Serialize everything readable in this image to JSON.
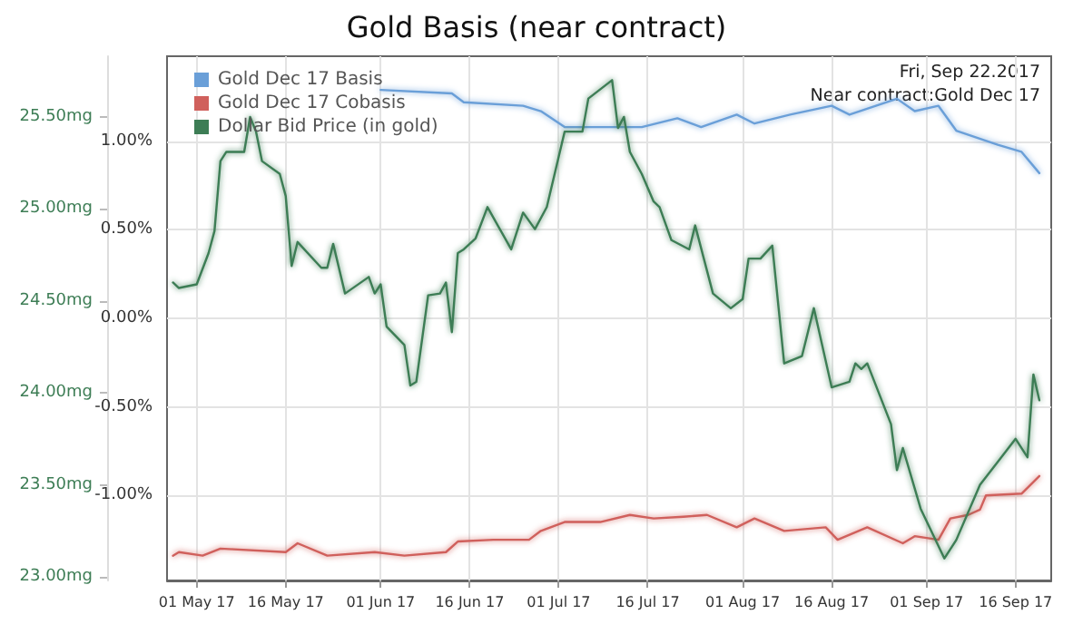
{
  "chart_data": {
    "type": "line",
    "title": "Gold Basis (near contract)",
    "annotations": [
      "Fri, Sep 22.2017",
      "Near contract:Gold Dec 17"
    ],
    "xlim": [
      "2017-04-26",
      "2017-09-22"
    ],
    "xticks": [
      {
        "value": "2017-05-01",
        "label": "01 May 17"
      },
      {
        "value": "2017-05-16",
        "label": "16 May 17"
      },
      {
        "value": "2017-06-01",
        "label": "01 Jun 17"
      },
      {
        "value": "2017-06-16",
        "label": "16 Jun 17"
      },
      {
        "value": "2017-07-01",
        "label": "01 Jul 17"
      },
      {
        "value": "2017-07-16",
        "label": "16 Jul 17"
      },
      {
        "value": "2017-08-01",
        "label": "01 Aug 17"
      },
      {
        "value": "2017-08-16",
        "label": "16 Aug 17"
      },
      {
        "value": "2017-09-01",
        "label": "01 Sep 17"
      },
      {
        "value": "2017-09-16",
        "label": "16 Sep 17"
      }
    ],
    "ylim": [
      -1.48,
      1.48
    ],
    "yticks": [
      {
        "value": -1,
        "label": "-1.00%"
      },
      {
        "value": -0.5,
        "label": "-0.50%"
      },
      {
        "value": 0,
        "label": "0.00%"
      },
      {
        "value": 0.5,
        "label": "0.50%"
      },
      {
        "value": 1,
        "label": "1.00%"
      }
    ],
    "y2lim": [
      22.98,
      25.83
    ],
    "y2ticks": [
      {
        "value": 23,
        "label": "23.00mg"
      },
      {
        "value": 23.5,
        "label": "23.50mg"
      },
      {
        "value": 24,
        "label": "24.00mg"
      },
      {
        "value": 24.5,
        "label": "24.50mg"
      },
      {
        "value": 25,
        "label": "25.00mg"
      },
      {
        "value": 25.5,
        "label": "25.50mg"
      }
    ],
    "grid": true,
    "legend": "top left",
    "marker": "none",
    "line_style": "solid",
    "series": [
      {
        "name": "Gold Dec 17 Basis",
        "color": "#6a9fd8",
        "x": [
          "2017-06-01",
          "2017-06-13",
          "2017-06-15",
          "2017-06-25",
          "2017-06-28",
          "2017-07-02",
          "2017-07-15",
          "2017-07-21",
          "2017-07-25",
          "2017-07-31",
          "2017-08-03",
          "2017-08-09",
          "2017-08-16",
          "2017-08-19",
          "2017-08-27",
          "2017-08-30",
          "2017-09-03",
          "2017-09-06",
          "2017-09-13",
          "2017-09-17",
          "2017-09-20"
        ],
        "values": [
          1.29,
          1.27,
          1.22,
          1.2,
          1.17,
          1.08,
          1.08,
          1.13,
          1.08,
          1.15,
          1.1,
          1.15,
          1.2,
          1.15,
          1.24,
          1.17,
          1.2,
          1.06,
          0.98,
          0.94,
          0.82
        ]
      },
      {
        "name": "Gold Dec 17 Cobasis",
        "color": "#d0605c",
        "x": [
          "2017-04-27",
          "2017-04-28",
          "2017-05-02",
          "2017-05-05",
          "2017-05-16",
          "2017-05-18",
          "2017-05-23",
          "2017-05-31",
          "2017-06-05",
          "2017-06-12",
          "2017-06-14",
          "2017-06-20",
          "2017-06-26",
          "2017-06-28",
          "2017-07-02",
          "2017-07-08",
          "2017-07-13",
          "2017-07-17",
          "2017-07-22",
          "2017-07-26",
          "2017-07-31",
          "2017-08-03",
          "2017-08-08",
          "2017-08-15",
          "2017-08-17",
          "2017-08-22",
          "2017-08-28",
          "2017-08-30",
          "2017-09-03",
          "2017-09-05",
          "2017-09-08",
          "2017-09-10",
          "2017-09-11",
          "2017-09-17",
          "2017-09-20"
        ],
        "values": [
          -1.34,
          -1.32,
          -1.34,
          -1.3,
          -1.32,
          -1.27,
          -1.34,
          -1.32,
          -1.34,
          -1.32,
          -1.26,
          -1.25,
          -1.25,
          -1.2,
          -1.15,
          -1.15,
          -1.11,
          -1.13,
          -1.12,
          -1.11,
          -1.18,
          -1.13,
          -1.2,
          -1.18,
          -1.25,
          -1.18,
          -1.27,
          -1.23,
          -1.25,
          -1.13,
          -1.11,
          -1.08,
          -1.0,
          -0.99,
          -0.89
        ]
      },
      {
        "name": "Dollar Bid Price (in gold)",
        "color": "#3d7d55",
        "axis": "y2",
        "x": [
          "2017-04-27",
          "2017-04-28",
          "2017-05-01",
          "2017-05-03",
          "2017-05-04",
          "2017-05-05",
          "2017-05-06",
          "2017-05-09",
          "2017-05-10",
          "2017-05-11",
          "2017-05-12",
          "2017-05-15",
          "2017-05-16",
          "2017-05-17",
          "2017-05-18",
          "2017-05-22",
          "2017-05-23",
          "2017-05-24",
          "2017-05-26",
          "2017-05-30",
          "2017-05-31",
          "2017-06-01",
          "2017-06-02",
          "2017-06-05",
          "2017-06-06",
          "2017-06-07",
          "2017-06-09",
          "2017-06-11",
          "2017-06-12",
          "2017-06-13",
          "2017-06-14",
          "2017-06-15",
          "2017-06-17",
          "2017-06-19",
          "2017-06-23",
          "2017-06-25",
          "2017-06-27",
          "2017-06-29",
          "2017-07-02",
          "2017-07-05",
          "2017-07-06",
          "2017-07-10",
          "2017-07-11",
          "2017-07-12",
          "2017-07-13",
          "2017-07-15",
          "2017-07-17",
          "2017-07-18",
          "2017-07-20",
          "2017-07-23",
          "2017-07-24",
          "2017-07-27",
          "2017-07-30",
          "2017-08-01",
          "2017-08-02",
          "2017-08-04",
          "2017-08-06",
          "2017-08-08",
          "2017-08-11",
          "2017-08-13",
          "2017-08-16",
          "2017-08-19",
          "2017-08-20",
          "2017-08-21",
          "2017-08-22",
          "2017-08-26",
          "2017-08-27",
          "2017-08-28",
          "2017-08-31",
          "2017-09-04",
          "2017-09-06",
          "2017-09-10",
          "2017-09-16",
          "2017-09-18",
          "2017-09-19",
          "2017-09-20"
        ],
        "values": [
          24.6,
          24.57,
          24.59,
          24.76,
          24.88,
          25.26,
          25.31,
          25.31,
          25.5,
          25.42,
          25.26,
          25.19,
          25.07,
          24.69,
          24.82,
          24.68,
          24.68,
          24.81,
          24.54,
          24.63,
          24.54,
          24.59,
          24.36,
          24.26,
          24.04,
          24.06,
          24.53,
          24.54,
          24.6,
          24.33,
          24.76,
          24.78,
          24.84,
          25.01,
          24.78,
          24.98,
          24.89,
          25.01,
          25.42,
          25.42,
          25.6,
          25.7,
          25.44,
          25.5,
          25.31,
          25.19,
          25.04,
          25.01,
          24.83,
          24.78,
          24.91,
          24.54,
          24.46,
          24.51,
          24.73,
          24.73,
          24.8,
          24.16,
          24.2,
          24.46,
          24.03,
          24.06,
          24.16,
          24.13,
          24.16,
          23.83,
          23.58,
          23.7,
          23.37,
          23.1,
          23.2,
          23.5,
          23.75,
          23.65,
          24.1,
          23.96
        ]
      }
    ]
  }
}
